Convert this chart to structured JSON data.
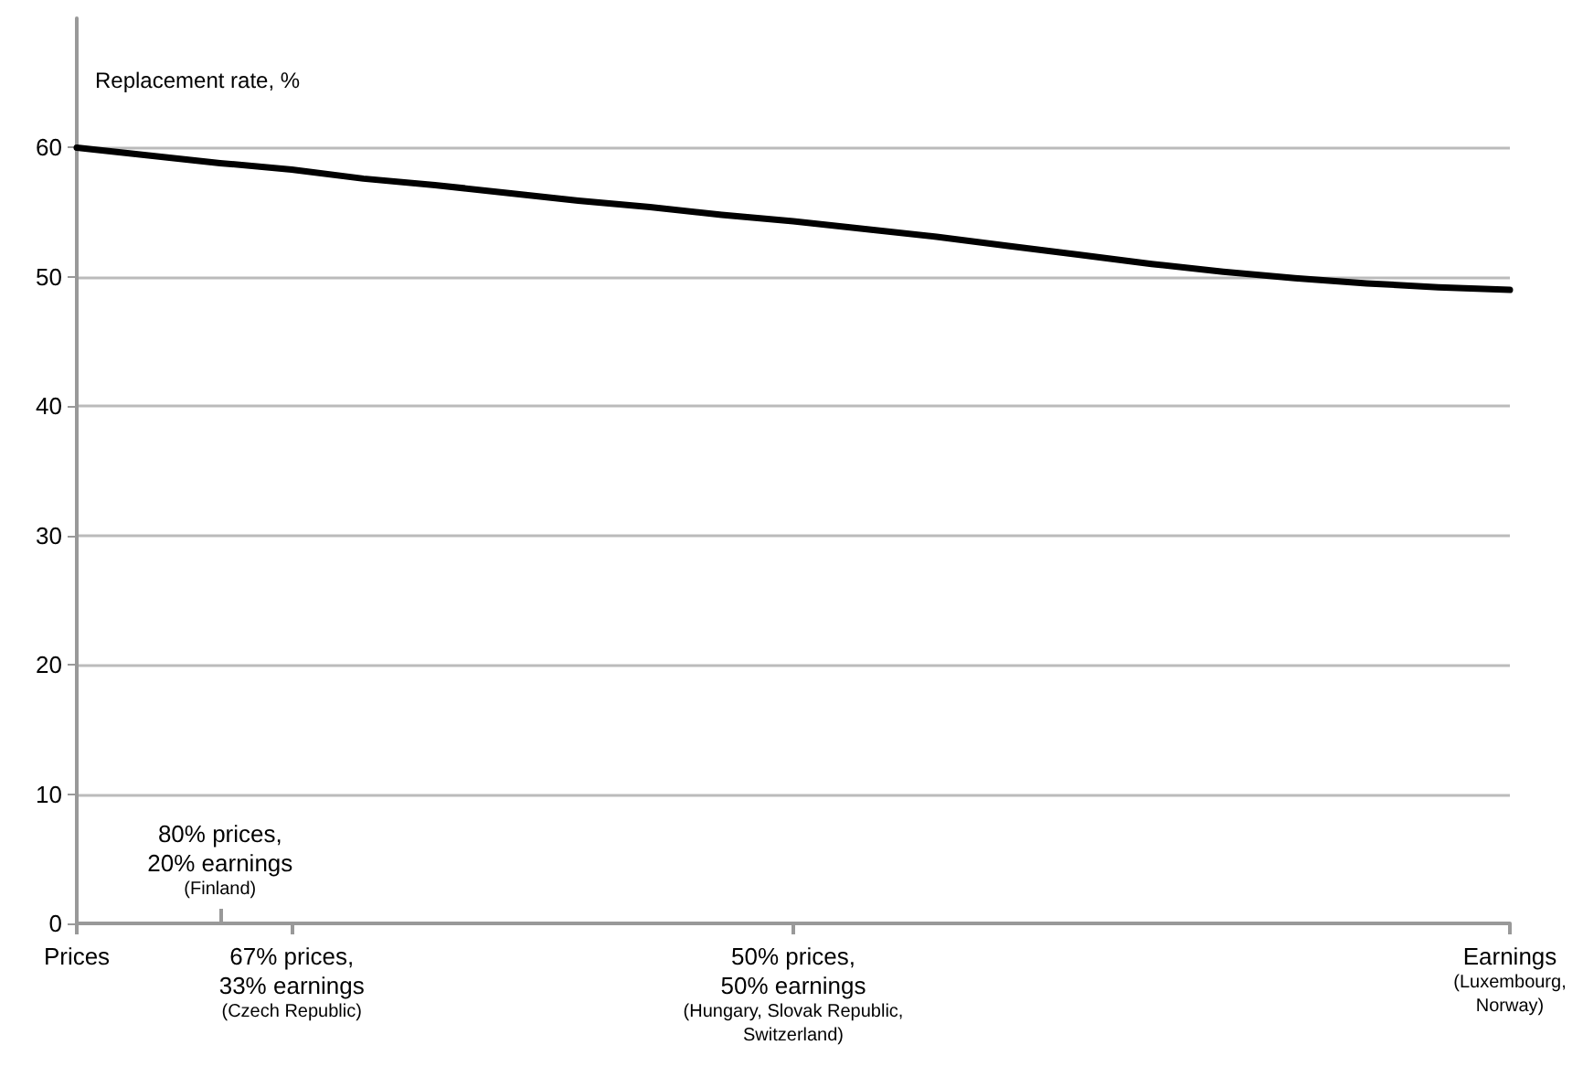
{
  "chart_data": {
    "type": "line",
    "ylabel": "Replacement rate, %",
    "categories": [
      "Prices",
      null,
      "80% prices,\n20% earnings\n(Finland)",
      "67% prices,\n33% earnings\n(Czech Republic)",
      null,
      null,
      null,
      null,
      null,
      null,
      "50% prices,\n50% earnings\n(Hungary, Slovak Republic,\nSwitzerland)",
      null,
      null,
      null,
      null,
      null,
      null,
      null,
      null,
      null,
      "Earnings\n(Luxembourg,\nNorway)"
    ],
    "series": [
      {
        "color": "#000000",
        "values": [
          60,
          59.4,
          58.8,
          58.3,
          57.6,
          57.1,
          56.5,
          55.9,
          55.4,
          54.8,
          54.3,
          53.7,
          53.1,
          52.4,
          51.7,
          51.0,
          50.4,
          49.9,
          49.5,
          49.2,
          49
        ]
      }
    ],
    "ylim": [
      0,
      70
    ],
    "yticks": [
      0,
      10,
      20,
      30,
      40,
      50,
      60
    ],
    "grid": "y",
    "marker": "none",
    "line_style": "solid"
  }
}
